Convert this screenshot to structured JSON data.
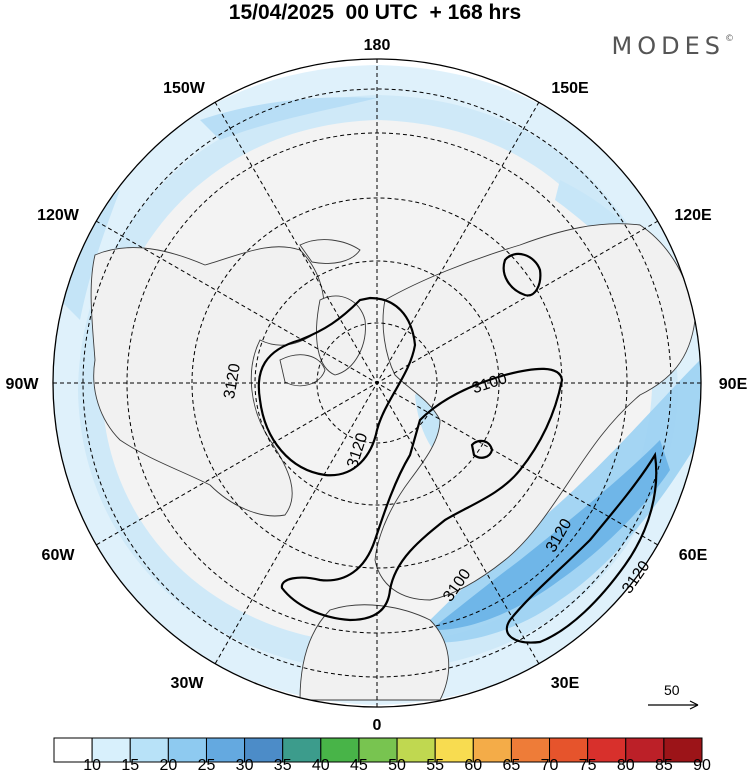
{
  "title": "15/04/2025  00 UTC  + 168 hrs",
  "brand": {
    "name": "MODES",
    "mark": "©"
  },
  "longitude_labels": {
    "top": "180",
    "upper_left": "150W",
    "upper_right": "150E",
    "left_high": "120W",
    "right_high": "120E",
    "left": "90W",
    "right": "90E",
    "left_low": "60W",
    "right_low": "60E",
    "lower_left": "30W",
    "lower_right": "30E",
    "bottom": "0"
  },
  "contour_labels": [
    "3120",
    "3120",
    "3100",
    "3100",
    "3120",
    "3120"
  ],
  "reference_vector": {
    "value": "50"
  },
  "colorbar": {
    "labels": [
      "10",
      "15",
      "20",
      "25",
      "30",
      "35",
      "40",
      "45",
      "50",
      "55",
      "60",
      "65",
      "70",
      "75",
      "80",
      "85",
      "90"
    ],
    "colors": [
      "#ffffff",
      "#d8f0fc",
      "#b8e2f8",
      "#8ecaf0",
      "#64a9e0",
      "#4c8cc8",
      "#3c9c8c",
      "#48b448",
      "#78c450",
      "#c0d850",
      "#f8dc50",
      "#f4ac48",
      "#ee7c38",
      "#e6542c",
      "#d8302c",
      "#bc2028",
      "#9c1418"
    ]
  }
}
